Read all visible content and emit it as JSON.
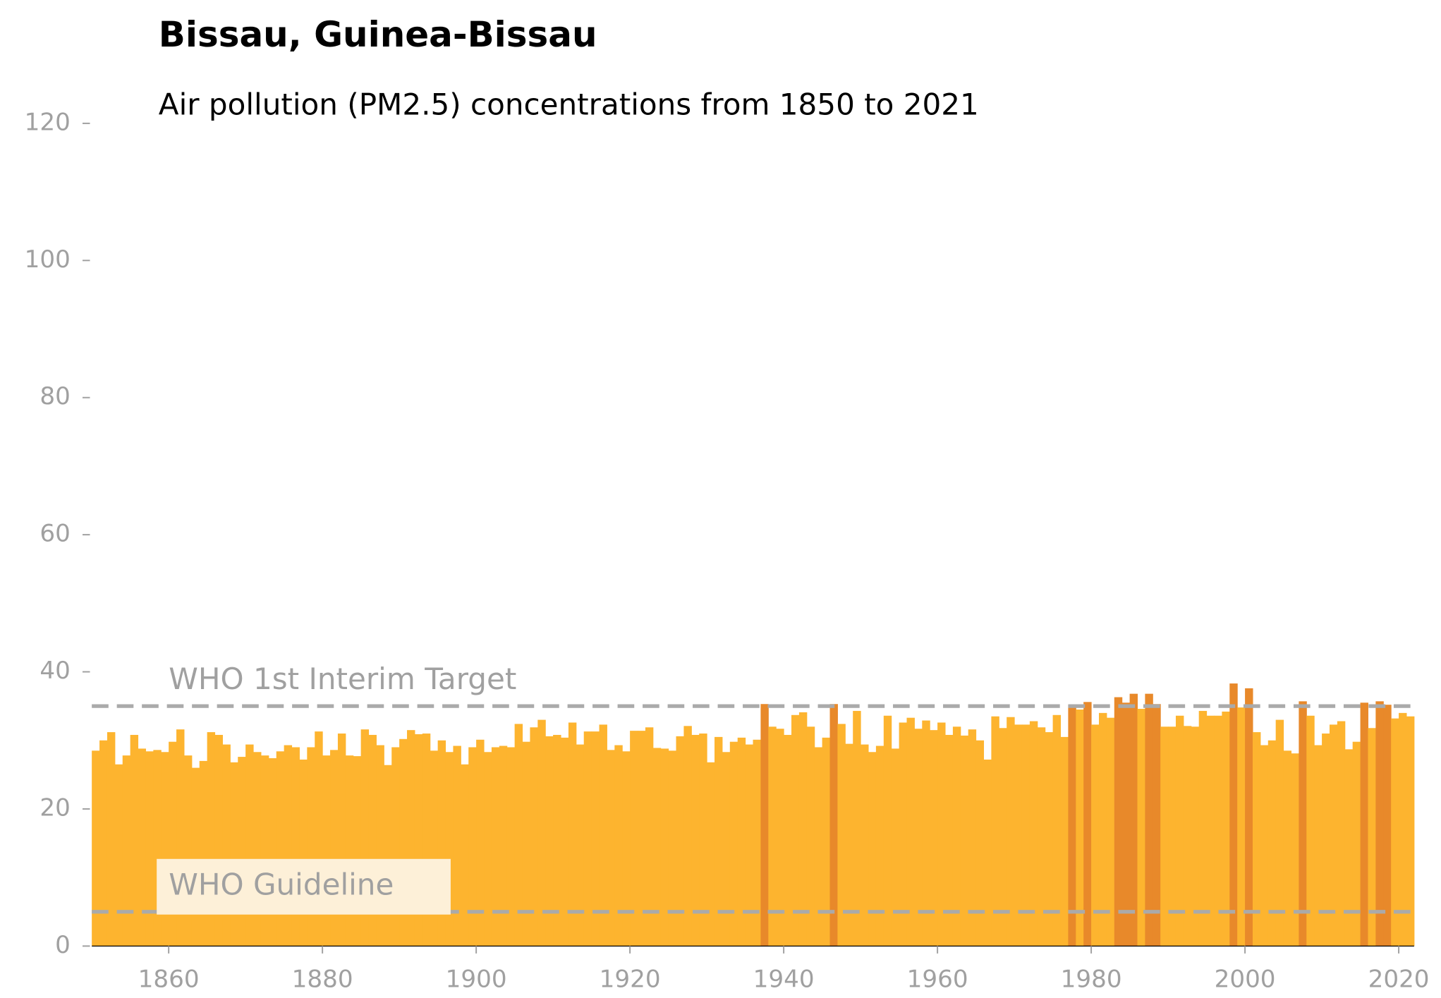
{
  "chart_data": {
    "type": "bar",
    "title": "Bissau, Guinea-Bissau",
    "subtitle": "Air pollution (PM2.5) concentrations from 1850 to 2021",
    "x": [
      1850,
      1851,
      1852,
      1853,
      1854,
      1855,
      1856,
      1857,
      1858,
      1859,
      1860,
      1861,
      1862,
      1863,
      1864,
      1865,
      1866,
      1867,
      1868,
      1869,
      1870,
      1871,
      1872,
      1873,
      1874,
      1875,
      1876,
      1877,
      1878,
      1879,
      1880,
      1881,
      1882,
      1883,
      1884,
      1885,
      1886,
      1887,
      1888,
      1889,
      1890,
      1891,
      1892,
      1893,
      1894,
      1895,
      1896,
      1897,
      1898,
      1899,
      1900,
      1901,
      1902,
      1903,
      1904,
      1905,
      1906,
      1907,
      1908,
      1909,
      1910,
      1911,
      1912,
      1913,
      1914,
      1915,
      1916,
      1917,
      1918,
      1919,
      1920,
      1921,
      1922,
      1923,
      1924,
      1925,
      1926,
      1927,
      1928,
      1929,
      1930,
      1931,
      1932,
      1933,
      1934,
      1935,
      1936,
      1937,
      1938,
      1939,
      1940,
      1941,
      1942,
      1943,
      1944,
      1945,
      1946,
      1947,
      1948,
      1949,
      1950,
      1951,
      1952,
      1953,
      1954,
      1955,
      1956,
      1957,
      1958,
      1959,
      1960,
      1961,
      1962,
      1963,
      1964,
      1965,
      1966,
      1967,
      1968,
      1969,
      1970,
      1971,
      1972,
      1973,
      1974,
      1975,
      1976,
      1977,
      1978,
      1979,
      1980,
      1981,
      1982,
      1983,
      1984,
      1985,
      1986,
      1987,
      1988,
      1989,
      1990,
      1991,
      1992,
      1993,
      1994,
      1995,
      1996,
      1997,
      1998,
      1999,
      2000,
      2001,
      2002,
      2003,
      2004,
      2005,
      2006,
      2007,
      2008,
      2009,
      2010,
      2011,
      2012,
      2013,
      2014,
      2015,
      2016,
      2017,
      2018,
      2019,
      2020,
      2021
    ],
    "values": [
      28.5,
      30,
      31.2,
      26.5,
      27.8,
      30.8,
      28.8,
      28.4,
      28.6,
      28.3,
      29.8,
      31.6,
      27.8,
      26,
      27,
      31.2,
      30.8,
      29.4,
      26.8,
      27.6,
      29.4,
      28.3,
      27.8,
      27.4,
      28.4,
      29.3,
      29,
      27.2,
      29,
      31.3,
      27.8,
      28.6,
      31,
      27.8,
      27.7,
      31.6,
      30.8,
      29.3,
      26.4,
      29,
      30.2,
      31.5,
      30.9,
      31,
      28.5,
      30,
      28.3,
      29.2,
      26.5,
      29,
      30.1,
      28.3,
      29,
      29.2,
      29,
      32.4,
      29.8,
      31.9,
      33,
      30.6,
      30.8,
      30.4,
      32.6,
      29.4,
      31.3,
      31.3,
      32.3,
      28.6,
      29.3,
      28.4,
      31.4,
      31.4,
      31.9,
      28.9,
      28.8,
      28.5,
      30.6,
      32.1,
      30.8,
      31,
      26.8,
      30.5,
      28.3,
      29.8,
      30.4,
      29.4,
      30.1,
      35.3,
      32,
      31.7,
      30.8,
      33.7,
      34.1,
      32,
      29,
      30.4,
      35.3,
      32.4,
      29.5,
      34.3,
      29.4,
      28.3,
      29.2,
      33.6,
      28.8,
      32.6,
      33.3,
      31.7,
      32.9,
      31.5,
      32.6,
      30.8,
      32,
      30.7,
      31.6,
      30,
      27.2,
      33.5,
      31.8,
      33.4,
      32.3,
      32.3,
      32.8,
      31.9,
      31.2,
      33.7,
      30.5,
      35.2,
      34.5,
      35.6,
      32.3,
      34,
      33.3,
      36.3,
      35.5,
      36.8,
      34.6,
      36.8,
      35.3,
      32,
      32,
      33.6,
      32.1,
      32,
      34.3,
      33.6,
      33.6,
      34.2,
      38.3,
      34.8,
      37.6,
      31.2,
      29.3,
      30,
      33,
      28.5,
      28.1,
      35.7,
      33.6,
      29.3,
      31,
      32.3,
      32.8,
      28.7,
      29.8,
      35.5,
      31.8,
      35.7,
      35.2,
      33.2,
      34,
      33.5
    ],
    "color": "#fdb42f",
    "highlight_color": "#e8892a",
    "reference_lines": [
      {
        "value": 35,
        "label": "WHO 1st Interim Target"
      },
      {
        "value": 5,
        "label": "WHO Guideline"
      }
    ],
    "xlim": [
      1850,
      2022
    ],
    "xticks": [
      1860,
      1880,
      1900,
      1920,
      1940,
      1960,
      1980,
      2000,
      2020
    ],
    "ylim": [
      0,
      120
    ],
    "yticks": [
      0,
      20,
      40,
      60,
      80,
      100,
      120
    ]
  }
}
